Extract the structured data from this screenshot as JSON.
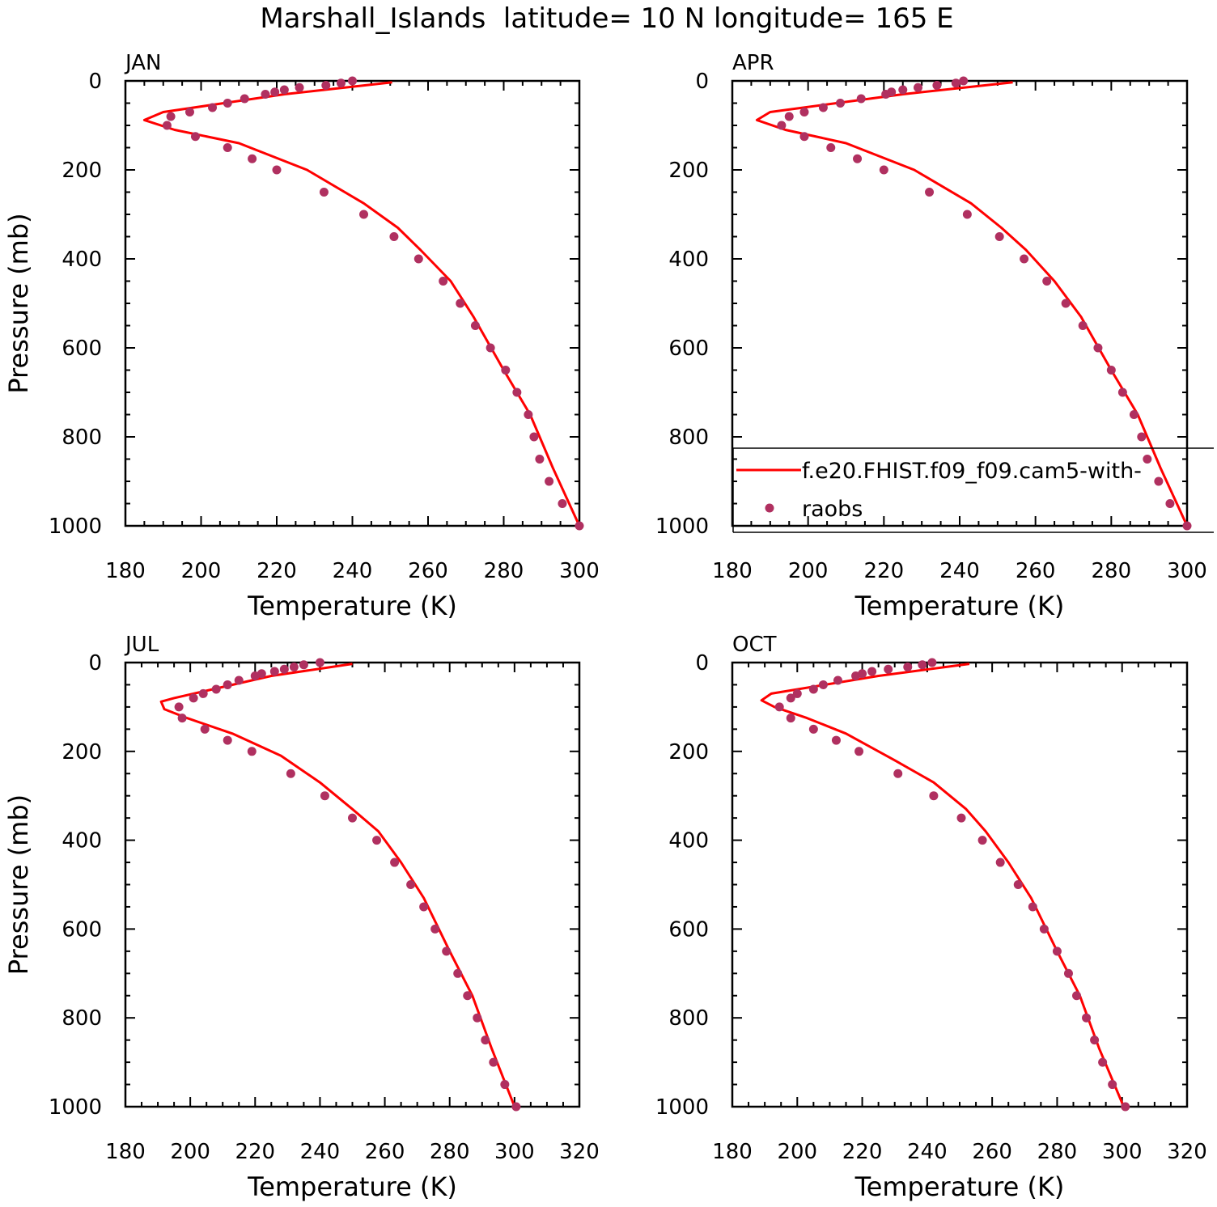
{
  "title": "Marshall_Islands  latitude= 10 N longitude= 165 E",
  "colors": {
    "model_line": "#ff0000",
    "obs_marker": "#b03060",
    "axis": "#000000"
  },
  "legend": {
    "placement": "inside-bottom of APR panel",
    "entries": [
      "f.e20.FHIST.f09_f09.cam5-with-",
      "raobs"
    ]
  },
  "chart_data": [
    {
      "type": "line",
      "panel_label": "JAN",
      "xlabel": "Temperature (K)",
      "ylabel": "Pressure (mb)",
      "xlim": [
        180,
        300
      ],
      "ylim": [
        1000,
        0
      ],
      "y_inverted": true,
      "xticks": [
        "180",
        "200",
        "220",
        "240",
        "260",
        "280",
        "300"
      ],
      "yticks": [
        "0",
        "200",
        "400",
        "600",
        "800",
        "1000"
      ],
      "series": [
        {
          "name": "f.e20.FHIST.f09_f09.cam5-with-",
          "kind": "line",
          "x": [
            250.5,
            222,
            190,
            185,
            193,
            210,
            228,
            243,
            252,
            258,
            266,
            272,
            280,
            287,
            293,
            300
          ],
          "y": [
            3,
            30,
            70,
            88,
            110,
            140,
            200,
            275,
            330,
            380,
            450,
            530,
            650,
            750,
            870,
            1000
          ]
        },
        {
          "name": "raobs",
          "kind": "scatter",
          "x": [
            240,
            237,
            233,
            226,
            222,
            219.5,
            217,
            211.5,
            207,
            203,
            197,
            192,
            191,
            198.5,
            207,
            213.5,
            220,
            232.5,
            243,
            251,
            257.5,
            264,
            268.5,
            272.5,
            276.5,
            280.5,
            283.5,
            286.5,
            288,
            289.5,
            292,
            295.5,
            300
          ],
          "y": [
            0,
            5,
            10,
            15,
            20,
            25,
            30,
            40,
            50,
            60,
            70,
            80,
            100,
            125,
            150,
            175,
            200,
            250,
            300,
            350,
            400,
            450,
            500,
            550,
            600,
            650,
            700,
            750,
            800,
            850,
            900,
            950,
            1000
          ]
        }
      ]
    },
    {
      "type": "line",
      "panel_label": "APR",
      "xlabel": "Temperature (K)",
      "ylabel": "",
      "xlim": [
        180,
        300
      ],
      "ylim": [
        1000,
        0
      ],
      "y_inverted": true,
      "xticks": [
        "180",
        "200",
        "220",
        "240",
        "260",
        "280",
        "300"
      ],
      "yticks": [
        "0",
        "200",
        "400",
        "600",
        "800",
        "1000"
      ],
      "series": [
        {
          "name": "f.e20.FHIST.f09_f09.cam5-with-",
          "kind": "line",
          "x": [
            254,
            225,
            190,
            186.5,
            194,
            210,
            228,
            243,
            251,
            257.5,
            265,
            272,
            280,
            287,
            293,
            300
          ],
          "y": [
            3,
            30,
            70,
            88,
            110,
            140,
            200,
            275,
            330,
            380,
            450,
            530,
            650,
            750,
            870,
            1000
          ]
        },
        {
          "name": "raobs",
          "kind": "scatter",
          "x": [
            241,
            239,
            234,
            229,
            225,
            222,
            220.5,
            214,
            208.5,
            204,
            199,
            195,
            193,
            199,
            206,
            213,
            220,
            232,
            242,
            250.5,
            257,
            263,
            268,
            272.5,
            276.5,
            280,
            283,
            286,
            288,
            289.5,
            292.5,
            295.5,
            300
          ],
          "y": [
            0,
            5,
            10,
            15,
            20,
            25,
            30,
            40,
            50,
            60,
            70,
            80,
            100,
            125,
            150,
            175,
            200,
            250,
            300,
            350,
            400,
            450,
            500,
            550,
            600,
            650,
            700,
            750,
            800,
            850,
            900,
            950,
            1000
          ]
        }
      ]
    },
    {
      "type": "line",
      "panel_label": "JUL",
      "xlabel": "Temperature (K)",
      "ylabel": "Pressure (mb)",
      "xlim": [
        180,
        320
      ],
      "ylim": [
        1000,
        0
      ],
      "y_inverted": true,
      "xticks": [
        "180",
        "200",
        "220",
        "240",
        "260",
        "280",
        "300",
        "320"
      ],
      "yticks": [
        "0",
        "200",
        "400",
        "600",
        "800",
        "1000"
      ],
      "series": [
        {
          "name": "f.e20.FHIST.f09_f09.cam5-with-",
          "kind": "line",
          "x": [
            250,
            225,
            195,
            191,
            192,
            199,
            213,
            228,
            240,
            250,
            258,
            265,
            272,
            280,
            287,
            293,
            300
          ],
          "y": [
            3,
            30,
            80,
            88,
            105,
            125,
            160,
            210,
            270,
            330,
            380,
            450,
            530,
            650,
            750,
            870,
            1000
          ]
        },
        {
          "name": "raobs",
          "kind": "scatter",
          "x": [
            240,
            235,
            232,
            229,
            226,
            222,
            220,
            215,
            211.5,
            208,
            204,
            201,
            196.5,
            197.5,
            204.5,
            211.5,
            219,
            231,
            241.5,
            250,
            257.5,
            263,
            268,
            272,
            275.5,
            279,
            282.5,
            285.5,
            288.5,
            291,
            293.5,
            297,
            300.5
          ],
          "y": [
            0,
            5,
            10,
            15,
            20,
            25,
            30,
            40,
            50,
            60,
            70,
            80,
            100,
            125,
            150,
            175,
            200,
            250,
            300,
            350,
            400,
            450,
            500,
            550,
            600,
            650,
            700,
            750,
            800,
            850,
            900,
            950,
            1000
          ]
        }
      ]
    },
    {
      "type": "line",
      "panel_label": "OCT",
      "xlabel": "Temperature (K)",
      "ylabel": "",
      "xlim": [
        180,
        320
      ],
      "ylim": [
        1000,
        0
      ],
      "y_inverted": true,
      "xticks": [
        "180",
        "200",
        "220",
        "240",
        "260",
        "280",
        "300",
        "320"
      ],
      "yticks": [
        "0",
        "200",
        "400",
        "600",
        "800",
        "1000"
      ],
      "series": [
        {
          "name": "f.e20.FHIST.f09_f09.cam5-with-",
          "kind": "line",
          "x": [
            253,
            225,
            192,
            189,
            193,
            203,
            215,
            230,
            242,
            252,
            258,
            265,
            272,
            280,
            287,
            293,
            300.5
          ],
          "y": [
            3,
            30,
            70,
            85,
            100,
            125,
            160,
            220,
            270,
            330,
            380,
            450,
            530,
            650,
            750,
            870,
            1000
          ]
        },
        {
          "name": "raobs",
          "kind": "scatter",
          "x": [
            241.5,
            238.5,
            234,
            228,
            223,
            220,
            218,
            212.5,
            208,
            205,
            200,
            198,
            194.5,
            198,
            205,
            212,
            219,
            231,
            242,
            250.5,
            257,
            262.5,
            268,
            272.5,
            276,
            280,
            283.5,
            286,
            289,
            291.5,
            294,
            297,
            301
          ],
          "y": [
            0,
            5,
            10,
            15,
            20,
            25,
            30,
            40,
            50,
            60,
            70,
            80,
            100,
            125,
            150,
            175,
            200,
            250,
            300,
            350,
            400,
            450,
            500,
            550,
            600,
            650,
            700,
            750,
            800,
            850,
            900,
            950,
            1000
          ]
        }
      ]
    }
  ]
}
